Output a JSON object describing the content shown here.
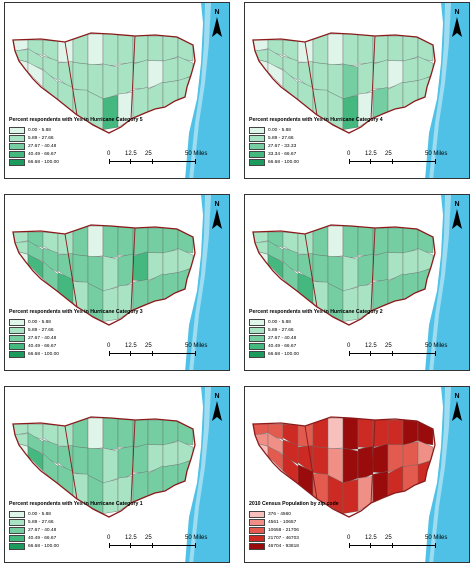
{
  "north_label": "N",
  "scale": {
    "ticks": [
      "0",
      "12.5",
      "25",
      "50 Miles"
    ]
  },
  "colors": {
    "green": [
      "#e0f5ea",
      "#a8e3c4",
      "#74cea2",
      "#45b880",
      "#1d9a5e"
    ],
    "red": [
      "#f7c0bc",
      "#ef8f86",
      "#e35a4f",
      "#cc2a22",
      "#9a0c0c"
    ],
    "water": [
      "#4fc1e6",
      "#9edcf2"
    ],
    "border": "#8b1a1a"
  },
  "panels": [
    {
      "id": "cat5",
      "palette": "green",
      "legend_title": "Percent respondents with Yes in Hurricane Category 5",
      "classes": [
        "0.00 - 5.88",
        "5.89 - 27.66",
        "27.67 - 40.48",
        "40.49 - 66.67",
        "66.68 - 100.00"
      ],
      "zone_classes": [
        0,
        1,
        0,
        1,
        1,
        0,
        1,
        1,
        1,
        0,
        1,
        1,
        1,
        1,
        1,
        0,
        1,
        1,
        1,
        1,
        3,
        1,
        1,
        0,
        1,
        1,
        1,
        1,
        0,
        1,
        1,
        1,
        1,
        1,
        1,
        1
      ]
    },
    {
      "id": "cat4",
      "palette": "green",
      "legend_title": "Percent respondents with Yes in Hurricane Category 4",
      "classes": [
        "0.00 - 5.88",
        "5.89 - 27.66",
        "27.67 - 33.33",
        "33.34 - 66.67",
        "66.68 - 100.00"
      ],
      "zone_classes": [
        0,
        1,
        0,
        1,
        1,
        0,
        1,
        1,
        1,
        0,
        1,
        1,
        1,
        1,
        1,
        0,
        1,
        1,
        1,
        2,
        3,
        1,
        1,
        0,
        1,
        1,
        2,
        1,
        0,
        1,
        1,
        1,
        1,
        1,
        1,
        1
      ]
    },
    {
      "id": "cat3",
      "palette": "green",
      "legend_title": "Percent respondents with Yes in Hurricane Category 3",
      "classes": [
        "0.00 - 5.88",
        "5.89 - 27.66",
        "27.67 - 40.48",
        "40.49 - 66.67",
        "66.68 - 100.00"
      ],
      "zone_classes": [
        1,
        1,
        0,
        2,
        2,
        3,
        1,
        2,
        2,
        1,
        2,
        3,
        2,
        2,
        1,
        0,
        2,
        2,
        2,
        1,
        1,
        2,
        2,
        1,
        2,
        3,
        2,
        2,
        1,
        2,
        2,
        1,
        2,
        2,
        1,
        2
      ]
    },
    {
      "id": "cat2",
      "palette": "green",
      "legend_title": "Percent respondents with Yes in Hurricane Category 2",
      "classes": [
        "0.00 - 5.88",
        "5.89 - 27.66",
        "27.67 - 40.48",
        "40.49 - 66.67",
        "66.68 - 100.00"
      ],
      "zone_classes": [
        1,
        1,
        0,
        2,
        2,
        3,
        1,
        2,
        2,
        1,
        2,
        3,
        2,
        2,
        1,
        0,
        2,
        2,
        2,
        1,
        1,
        2,
        2,
        1,
        2,
        2,
        2,
        2,
        1,
        2,
        2,
        1,
        2,
        2,
        1,
        2
      ]
    },
    {
      "id": "cat1",
      "palette": "green",
      "legend_title": "Percent respondents with Yes in Hurricane Category 1",
      "classes": [
        "0.00 - 5.88",
        "5.89 - 27.66",
        "27.67 - 40.48",
        "40.49 - 66.67",
        "66.68 - 100.00"
      ],
      "zone_classes": [
        1,
        1,
        0,
        1,
        2,
        3,
        1,
        2,
        2,
        1,
        2,
        2,
        2,
        2,
        1,
        0,
        2,
        2,
        2,
        1,
        1,
        2,
        2,
        1,
        2,
        2,
        2,
        2,
        1,
        2,
        2,
        1,
        2,
        2,
        1,
        2
      ]
    },
    {
      "id": "population",
      "palette": "red",
      "legend_title": "2010 Census Population by zip code",
      "classes": [
        "376 - 4560",
        "4561 - 10657",
        "10658 - 21706",
        "21707 - 46703",
        "46704 - 93818"
      ],
      "zone_classes": [
        2,
        1,
        0,
        2,
        1,
        2,
        3,
        3,
        3,
        2,
        3,
        4,
        3,
        3,
        2,
        0,
        1,
        3,
        4,
        4,
        3,
        3,
        4,
        1,
        3,
        4,
        4,
        3,
        2,
        3,
        4,
        2,
        2,
        4,
        1,
        3
      ]
    }
  ]
}
